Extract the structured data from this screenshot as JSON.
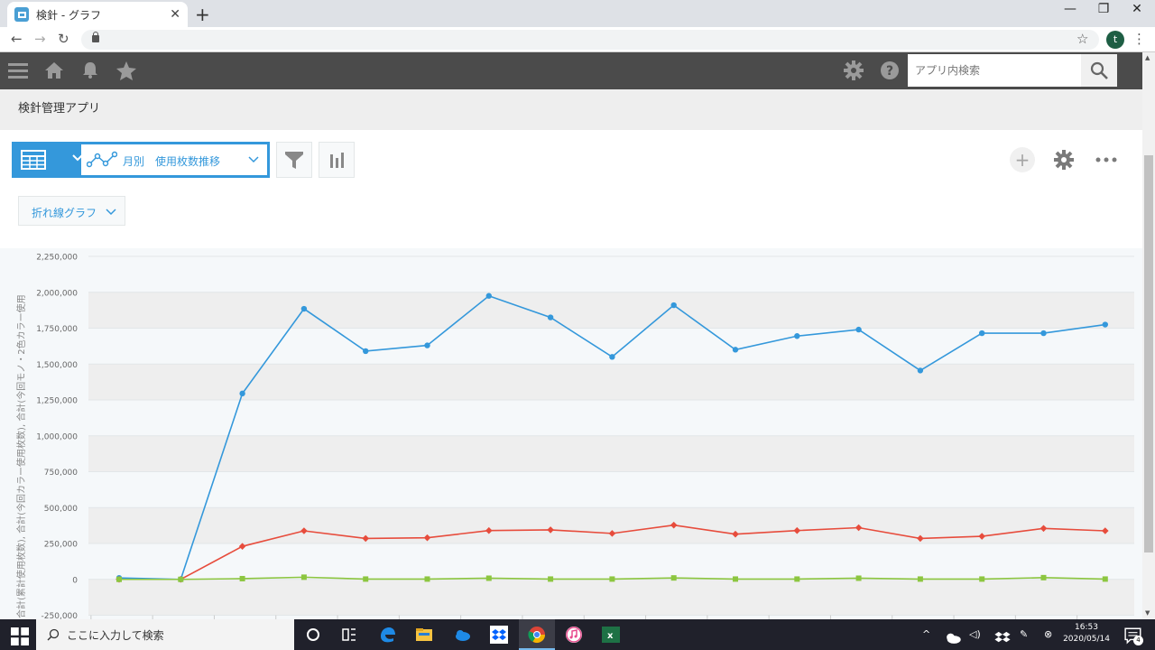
{
  "browser": {
    "tab_title": "検針 - グラフ",
    "tab_close": "✕",
    "new_tab": "+",
    "profile_initial": "t"
  },
  "app": {
    "search_placeholder": "アプリ内検索",
    "breadcrumb": "検針管理アプリ"
  },
  "view": {
    "selected_view": "月別　使用枚数推移",
    "chart_type": "折れ線グラフ"
  },
  "chart_data": {
    "type": "line",
    "ylabel": "合計(累計使用枚数), 合計(今回カラー使用枚数), 合計(今回モノ・2色カラー使用",
    "ylim": [
      -250000,
      2250000
    ],
    "yticks": [
      "2,250,000",
      "2,000,000",
      "1,750,000",
      "1,500,000",
      "1,250,000",
      "1,000,000",
      "750,000",
      "500,000",
      "250,000",
      "0",
      "-250,000"
    ],
    "series": [
      {
        "color": "#3498db",
        "marker": "circle",
        "values": [
          10000,
          0,
          1295000,
          1885000,
          1590000,
          1630000,
          1975000,
          1825000,
          1550000,
          1910000,
          1600000,
          1695000,
          1740000,
          1455000,
          1715000,
          1715000,
          1775000
        ]
      },
      {
        "color": "#e74c3c",
        "marker": "diamond",
        "values": [
          0,
          0,
          230000,
          338000,
          285000,
          290000,
          340000,
          345000,
          320000,
          378000,
          315000,
          340000,
          360000,
          285000,
          300000,
          355000,
          338000
        ]
      },
      {
        "color": "#8cc640",
        "marker": "square",
        "values": [
          0,
          0,
          5000,
          15000,
          2000,
          2000,
          8000,
          2000,
          2000,
          10000,
          2000,
          2000,
          8000,
          2000,
          2000,
          12000,
          2000
        ]
      }
    ]
  },
  "taskbar": {
    "search_text": "ここに入力して検索",
    "time": "16:53",
    "date": "2020/05/14",
    "notification_count": "4"
  }
}
